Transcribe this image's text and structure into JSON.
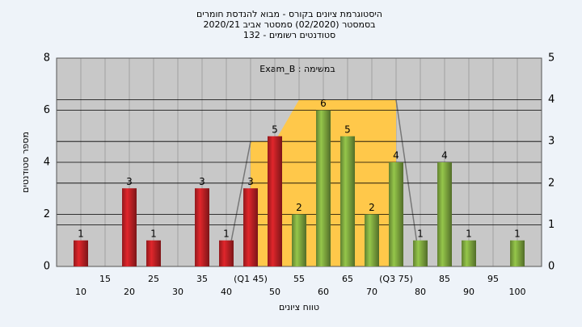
{
  "chart_data": {
    "type": "bar",
    "title": [
      "היסטוגרמת ציונים בקורס - מבוא להנדסת חומרים",
      "בסמסטר  (02/2020)  סמסטר אביב 2020/21",
      "סטודנטים רשומים - 132"
    ],
    "annotation": "במשימה : Exam_B",
    "xlabel": "טווח ציונים",
    "ylabel": "מספר סטודנטים",
    "x": [
      10,
      15,
      20,
      25,
      30,
      35,
      40,
      45,
      50,
      55,
      60,
      65,
      70,
      75,
      80,
      85,
      90,
      95,
      100
    ],
    "xlim": [
      5,
      105
    ],
    "xticks": [
      10,
      15,
      20,
      25,
      30,
      35,
      40,
      {
        "value": 45,
        "label": "(Q1 45)"
      },
      50,
      55,
      60,
      65,
      70,
      {
        "value": 75,
        "label": "(Q3 75)"
      },
      80,
      85,
      90,
      95,
      100
    ],
    "values": [
      1,
      0,
      3,
      1,
      0,
      3,
      1,
      3,
      5,
      2,
      6,
      5,
      2,
      4,
      1,
      4,
      1,
      0,
      1
    ],
    "colors": [
      "#e0262b",
      "#e0262b",
      "#e0262b",
      "#e0262b",
      "#e0262b",
      "#e0262b",
      "#e0262b",
      "#e0262b",
      "#e0262b",
      "#95c64a",
      "#95c64a",
      "#95c64a",
      "#95c64a",
      "#95c64a",
      "#95c64a",
      "#95c64a",
      "#95c64a",
      "#95c64a",
      "#95c64a"
    ],
    "ylim": [
      0,
      8
    ],
    "yticks": [
      0,
      2,
      4,
      6,
      8
    ],
    "y2lim": [
      0,
      5
    ],
    "y2ticks": [
      0,
      1,
      2,
      3,
      4,
      5
    ],
    "grid": true,
    "overlays": [
      {
        "type": "area",
        "axis": "y2",
        "color": "#ffc84a",
        "x": [
          45,
          50,
          55,
          75
        ],
        "values": [
          3,
          3,
          4,
          4
        ]
      },
      {
        "type": "line",
        "axis": "y2",
        "color": "#777777",
        "x": [
          40,
          45
        ],
        "values": [
          0,
          3
        ]
      },
      {
        "type": "line",
        "axis": "y2",
        "color": "#777777",
        "x": [
          75,
          80
        ],
        "values": [
          4,
          0
        ]
      }
    ]
  }
}
